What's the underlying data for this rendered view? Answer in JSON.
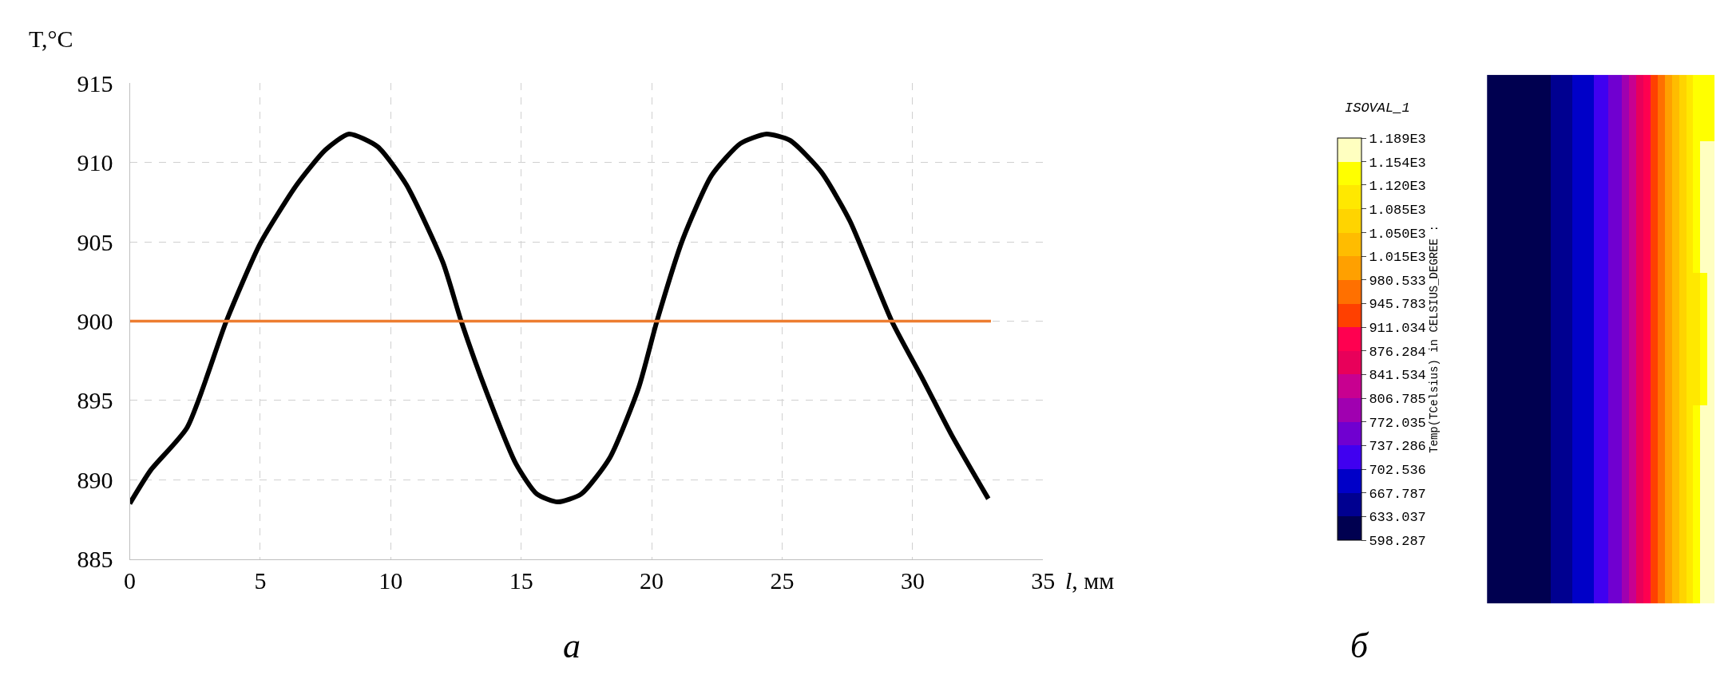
{
  "chart_data": [
    {
      "type": "line",
      "xlabel": "l, мм",
      "ylabel": "T,°C",
      "annotations": [
        "а"
      ],
      "xlim": [
        0,
        35
      ],
      "xticks": [
        0,
        5,
        10,
        15,
        20,
        25,
        30,
        35
      ],
      "ylim": [
        885,
        915
      ],
      "yticks": [
        885,
        890,
        895,
        900,
        905,
        910,
        915
      ],
      "grid": true,
      "line_style": "solid",
      "marker": "none",
      "series": [
        {
          "color": "#000000",
          "x": [
            0,
            0.8,
            2.2,
            3.7,
            5,
            6.4,
            7.5,
            8.4,
            9.5,
            10.6,
            12,
            12.7,
            13.7,
            14.8,
            15.6,
            16.4,
            17.3,
            18.4,
            19.5,
            20.2,
            21.2,
            22.3,
            23.4,
            24.4,
            25.3,
            26.5,
            27.6,
            29.2,
            30.4,
            31.5,
            32.9
          ],
          "values": [
            888.5,
            890.6,
            893.3,
            900,
            904.9,
            908.6,
            910.8,
            911.8,
            911,
            908.6,
            903.7,
            900,
            895.4,
            891,
            889.1,
            888.6,
            889.1,
            891.4,
            895.8,
            900,
            905.2,
            909.2,
            911.2,
            911.8,
            911.4,
            909.4,
            906.3,
            900,
            896.3,
            892.8,
            888.8
          ]
        },
        {
          "color": "#ed7d31",
          "x": [
            0,
            33
          ],
          "values": [
            900,
            900
          ]
        }
      ]
    },
    {
      "type": "heatmap",
      "legend_title": "ISOVAL_1",
      "clabel": "Temp(TCelsius) in CELSIUS_DEGREE :",
      "annotations": [
        "б"
      ],
      "categories": [
        null,
        null,
        null,
        null,
        null,
        null,
        null,
        null,
        null,
        null,
        null,
        null,
        null,
        null,
        null,
        null,
        null,
        null,
        null,
        null,
        null,
        null,
        null,
        null,
        null,
        null,
        null,
        null,
        null,
        null,
        null,
        null
      ],
      "y_categories": [
        null,
        null,
        null,
        null,
        null,
        null,
        null,
        null
      ],
      "colors": [
        "#000050",
        "#000090",
        "#0000c8",
        "#4000f0",
        "#7000d0",
        "#a000b0",
        "#c80090",
        "#e8005a",
        "#ff0050",
        "#ff4000",
        "#ff7000",
        "#ffa000",
        "#ffbc00",
        "#ffd400",
        "#ffe800",
        "#ffff00",
        "#ffffc0"
      ],
      "clim": [
        598.287,
        1189
      ],
      "cticks": [
        598.287,
        633.037,
        667.787,
        702.536,
        737.286,
        772.035,
        806.785,
        841.534,
        876.284,
        911.034,
        945.783,
        980.533,
        {
          "value": 1015,
          "label": "1.015E3"
        },
        {
          "value": 1050,
          "label": "1.050E3"
        },
        {
          "value": 1085,
          "label": "1.085E3"
        },
        {
          "value": 1120,
          "label": "1.120E3"
        },
        {
          "value": 1154,
          "label": "1.154E3"
        },
        {
          "value": 1189,
          "label": "1.189E3"
        }
      ],
      "cells": [
        [
          616,
          616,
          616,
          616,
          616,
          616,
          616,
          616,
          616,
          650,
          650,
          650,
          685,
          685,
          685,
          720,
          720,
          755,
          755,
          790,
          824,
          859,
          894,
          928,
          963,
          998,
          1032,
          1067,
          1102,
          1137,
          1137,
          1137
        ],
        [
          616,
          616,
          616,
          616,
          616,
          616,
          616,
          616,
          616,
          650,
          650,
          650,
          685,
          685,
          685,
          720,
          720,
          755,
          755,
          790,
          824,
          859,
          894,
          928,
          963,
          998,
          1032,
          1067,
          1102,
          1137,
          1172,
          1172
        ],
        [
          616,
          616,
          616,
          616,
          616,
          616,
          616,
          616,
          616,
          650,
          650,
          650,
          685,
          685,
          685,
          720,
          720,
          755,
          755,
          790,
          824,
          859,
          894,
          928,
          963,
          998,
          1032,
          1067,
          1102,
          1137,
          1172,
          1172
        ],
        [
          616,
          616,
          616,
          616,
          616,
          616,
          616,
          616,
          616,
          650,
          650,
          650,
          685,
          685,
          685,
          720,
          720,
          755,
          755,
          790,
          824,
          859,
          894,
          928,
          963,
          998,
          1032,
          1067,
          1102,
          1102,
          1137,
          1172
        ],
        [
          616,
          616,
          616,
          616,
          616,
          616,
          616,
          616,
          616,
          650,
          650,
          650,
          685,
          685,
          685,
          720,
          720,
          755,
          755,
          790,
          824,
          859,
          894,
          928,
          963,
          998,
          1032,
          1067,
          1102,
          1102,
          1137,
          1172
        ],
        [
          616,
          616,
          616,
          616,
          616,
          616,
          616,
          616,
          616,
          650,
          650,
          650,
          685,
          685,
          685,
          720,
          720,
          755,
          755,
          790,
          824,
          859,
          894,
          928,
          963,
          998,
          1032,
          1067,
          1102,
          1137,
          1172,
          1172
        ],
        [
          616,
          616,
          616,
          616,
          616,
          616,
          616,
          616,
          616,
          650,
          650,
          650,
          685,
          685,
          685,
          720,
          720,
          755,
          755,
          790,
          824,
          859,
          894,
          928,
          963,
          998,
          1032,
          1067,
          1102,
          1137,
          1172,
          1172
        ],
        [
          616,
          616,
          616,
          616,
          616,
          616,
          616,
          616,
          616,
          650,
          650,
          650,
          685,
          685,
          685,
          720,
          720,
          755,
          755,
          790,
          824,
          859,
          894,
          928,
          963,
          998,
          1032,
          1067,
          1102,
          1137,
          1172,
          1172
        ]
      ]
    }
  ]
}
